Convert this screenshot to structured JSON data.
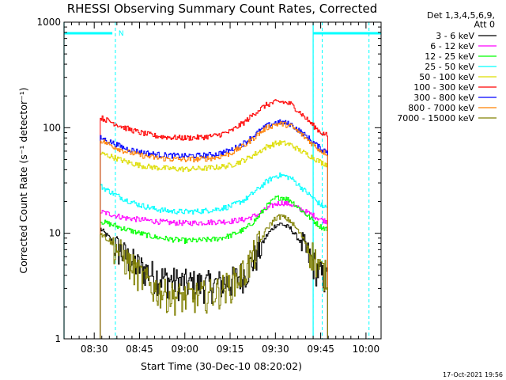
{
  "chart_data": {
    "type": "line",
    "title": "RHESSI Observing Summary Count Rates, Corrected",
    "xlabel": "Start Time (30-Dec-10 08:20:02)",
    "ylabel": "Corrected Count Rate (s⁻¹ detector⁻¹)",
    "y_scale": "log",
    "ylim": [
      1,
      1000
    ],
    "xlim_minutes": [
      0,
      105
    ],
    "x_tick_labels": [
      "08:30",
      "08:45",
      "09:00",
      "09:15",
      "09:30",
      "09:45",
      "10:00"
    ],
    "x_tick_minutes": [
      10,
      25,
      40,
      55,
      70,
      85,
      100
    ],
    "y_tick_labels": [
      "1",
      "10",
      "100",
      "1000"
    ],
    "y_tick_values": [
      1,
      10,
      100,
      1000
    ],
    "legend_header": [
      "Det 1,3,4,5,6,9,",
      "Att 0"
    ],
    "legend_position": "right",
    "time_axis_note": "x values are minutes after 08:20:02",
    "series": [
      {
        "name": "3 - 6 keV",
        "color": "#000000",
        "x": [
          12,
          15,
          18,
          22,
          26,
          30,
          35,
          40,
          45,
          50,
          55,
          60,
          64,
          67,
          70,
          72,
          75,
          78,
          82,
          85,
          87
        ],
        "y": [
          11,
          9,
          7,
          5.5,
          4.6,
          4,
          3.6,
          3.4,
          3.3,
          3.3,
          3.5,
          4.3,
          6.5,
          9.5,
          12,
          12.3,
          11,
          8.5,
          5.5,
          4,
          3.6
        ]
      },
      {
        "name": "6 - 12 keV",
        "color": "#ff00ff",
        "x": [
          12,
          16,
          20,
          25,
          30,
          35,
          40,
          45,
          50,
          55,
          60,
          64,
          67,
          70,
          72,
          75,
          78,
          82,
          85,
          87
        ],
        "y": [
          16,
          15,
          14,
          13.5,
          13,
          12.6,
          12.5,
          12.6,
          12.8,
          13,
          13.6,
          15,
          17,
          19,
          19.5,
          18.8,
          17,
          15,
          13.5,
          13
        ]
      },
      {
        "name": "12 - 25 keV",
        "color": "#00ff00",
        "x": [
          12,
          16,
          20,
          25,
          30,
          35,
          40,
          45,
          50,
          55,
          60,
          64,
          67,
          70,
          72,
          75,
          78,
          82,
          85,
          87
        ],
        "y": [
          13,
          12,
          11,
          10,
          9.2,
          8.8,
          8.5,
          8.6,
          8.8,
          9.5,
          11,
          14,
          18,
          21.5,
          22,
          20.5,
          17,
          13.5,
          11.5,
          11
        ]
      },
      {
        "name": "25 - 50 keV",
        "color": "#00ffff",
        "x": [
          12,
          16,
          20,
          25,
          30,
          35,
          40,
          45,
          50,
          55,
          60,
          64,
          67,
          70,
          72,
          75,
          78,
          82,
          85,
          87
        ],
        "y": [
          28,
          24,
          21,
          18.5,
          17,
          16.2,
          16,
          16.2,
          16.8,
          18,
          21,
          26,
          31,
          35,
          35.5,
          33.5,
          28,
          22,
          18.5,
          17.5
        ]
      },
      {
        "name": "50 - 100 keV",
        "color": "#dddd00",
        "x": [
          12,
          16,
          20,
          25,
          30,
          35,
          40,
          45,
          50,
          55,
          60,
          64,
          67,
          70,
          72,
          75,
          78,
          82,
          85,
          87
        ],
        "y": [
          57,
          53,
          48,
          44,
          42,
          41,
          40.5,
          41,
          42,
          44,
          50,
          58,
          66,
          71,
          72,
          69,
          61,
          53,
          47,
          45
        ]
      },
      {
        "name": "100 - 300 keV",
        "color": "#ff0000",
        "x": [
          12,
          16,
          20,
          25,
          30,
          35,
          40,
          45,
          50,
          55,
          60,
          64,
          67,
          70,
          72,
          75,
          78,
          82,
          85,
          87
        ],
        "y": [
          125,
          112,
          100,
          90,
          84,
          81,
          80,
          81,
          84,
          92,
          115,
          145,
          165,
          175,
          176,
          168,
          140,
          108,
          90,
          85
        ]
      },
      {
        "name": "300 - 800 keV",
        "color": "#0000ff",
        "x": [
          12,
          16,
          20,
          25,
          30,
          35,
          40,
          45,
          50,
          55,
          60,
          64,
          67,
          70,
          72,
          75,
          78,
          82,
          85,
          87
        ],
        "y": [
          80,
          72,
          64,
          59,
          56,
          54.5,
          54,
          54.5,
          56,
          61,
          73,
          90,
          104,
          112,
          113,
          108,
          93,
          75,
          63,
          60
        ]
      },
      {
        "name": "800 - 7000 keV",
        "color": "#ff8000",
        "x": [
          12,
          16,
          20,
          25,
          30,
          35,
          40,
          45,
          50,
          55,
          60,
          64,
          67,
          70,
          72,
          75,
          78,
          82,
          85,
          87
        ],
        "y": [
          76,
          67,
          60,
          55,
          52,
          50.5,
          50,
          50.5,
          52,
          57,
          69,
          86,
          100,
          108,
          109,
          104,
          89,
          71,
          60,
          57
        ]
      },
      {
        "name": "7000 - 15000 keV",
        "color": "#808000",
        "x": [
          12,
          15,
          18,
          22,
          26,
          30,
          35,
          40,
          45,
          50,
          55,
          60,
          64,
          67,
          70,
          72,
          75,
          78,
          82,
          85,
          87
        ],
        "y": [
          10,
          8.5,
          6.8,
          5,
          3.8,
          3,
          2.6,
          2.5,
          2.6,
          2.8,
          3.3,
          4.5,
          7.5,
          11,
          14,
          14.5,
          13,
          10,
          6.5,
          4.5,
          4
        ]
      }
    ],
    "attenuator_markers_minutes": [
      17,
      82.5,
      85.5,
      101
    ],
    "solid_boundaries_minutes": [
      0,
      82.5
    ],
    "top_bars": [
      {
        "start": 0,
        "end": 16
      },
      {
        "start": 82.5,
        "end": 105
      }
    ],
    "top_marker_label": "N",
    "footer_stamp": "17-Oct-2021 19:56",
    "colors": {
      "attenuator_line": "#00ffff"
    }
  }
}
